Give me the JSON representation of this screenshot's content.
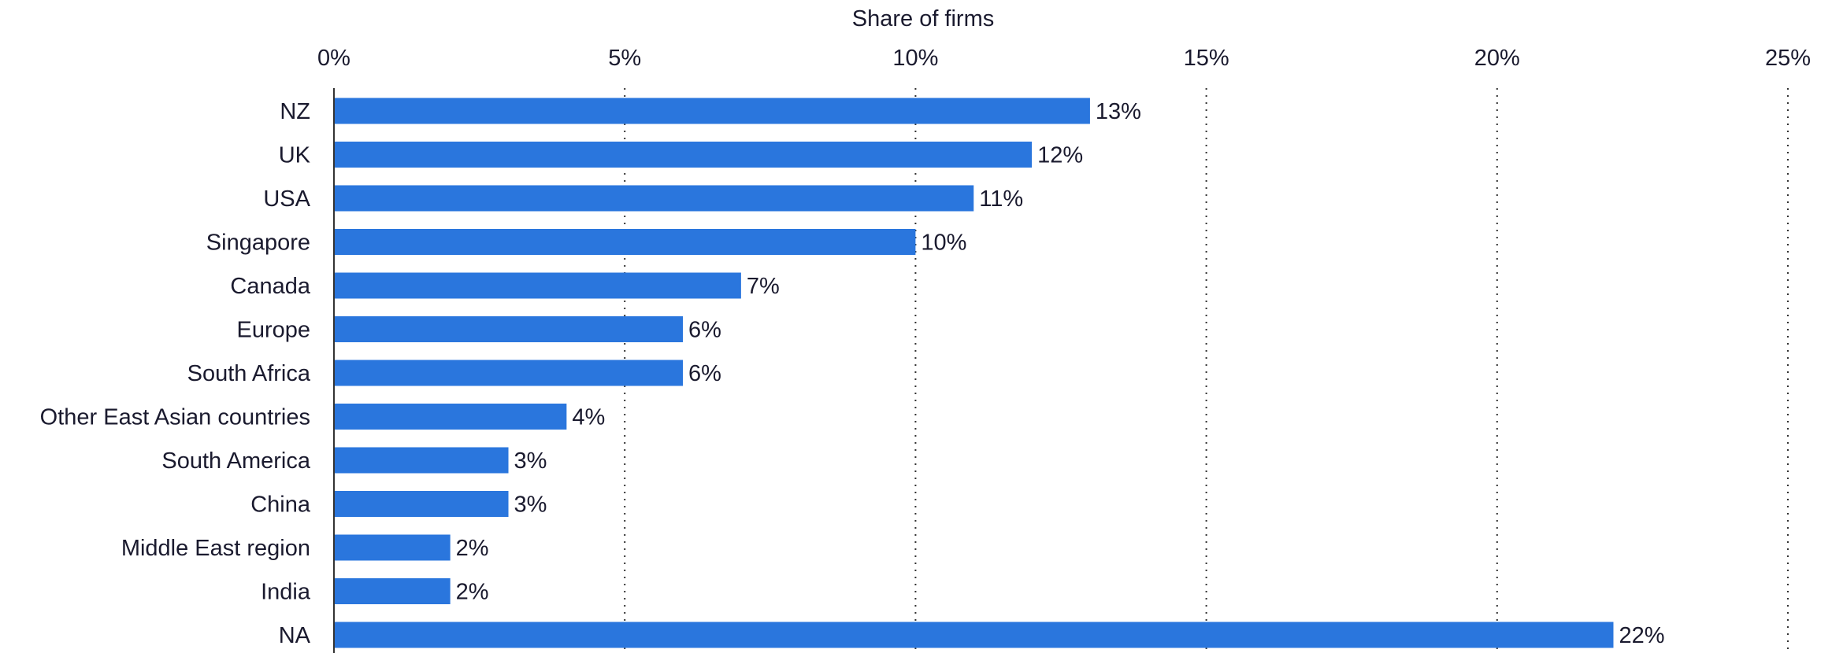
{
  "chart_data": {
    "type": "bar",
    "orientation": "horizontal",
    "xlabel": "Share of firms",
    "xlim": [
      0,
      25
    ],
    "x_ticks": [
      0,
      5,
      10,
      15,
      20,
      25
    ],
    "x_tick_labels": [
      "0%",
      "5%",
      "10%",
      "15%",
      "20%",
      "25%"
    ],
    "x_axis_position": "top",
    "grid": "vertical dotted",
    "categories": [
      "NZ",
      "UK",
      "USA",
      "Singapore",
      "Canada",
      "Europe",
      "South Africa",
      "Other East Asian countries",
      "South America",
      "China",
      "Middle East region",
      "India",
      "NA"
    ],
    "values": [
      13,
      12,
      11,
      10,
      7,
      6,
      6,
      4,
      3,
      3,
      2,
      2,
      22
    ],
    "value_labels": [
      "13%",
      "12%",
      "11%",
      "10%",
      "7%",
      "6%",
      "6%",
      "4%",
      "3%",
      "3%",
      "2%",
      "2%",
      "22%"
    ],
    "bar_color": "#2a76dd"
  }
}
